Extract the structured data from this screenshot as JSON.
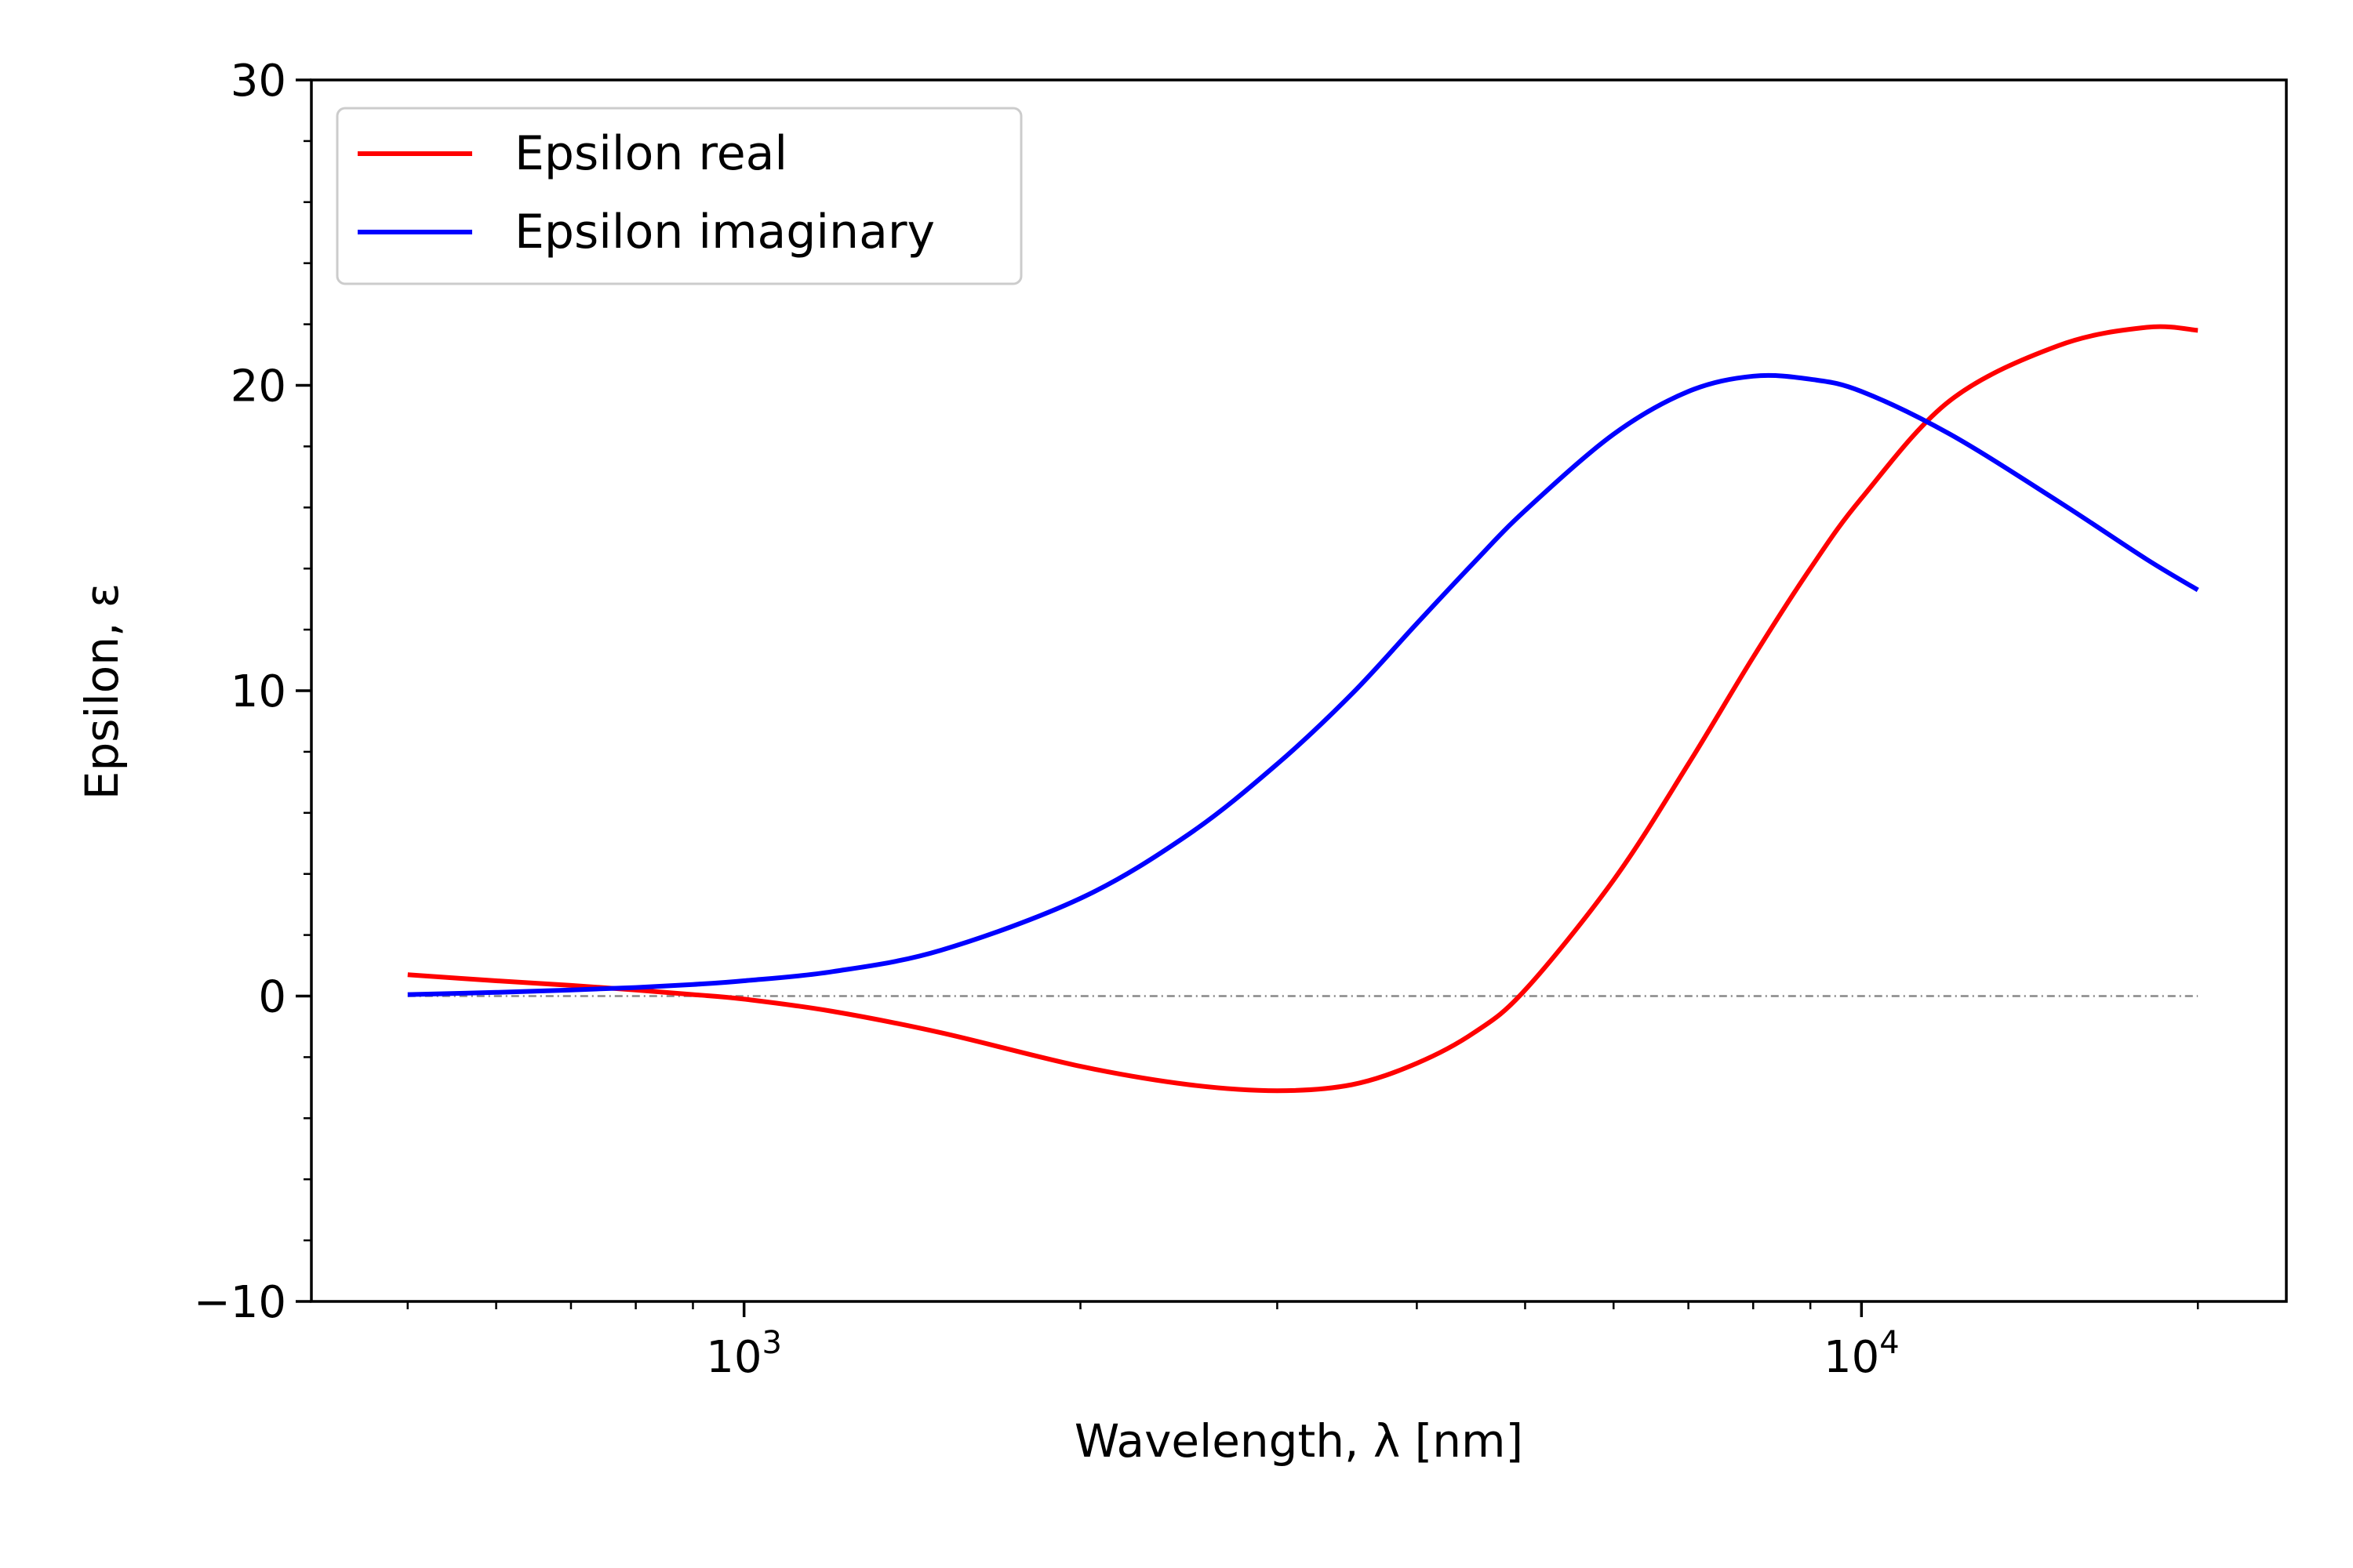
{
  "chart_data": {
    "type": "line",
    "xlabel": "Wavelength, λ [nm]",
    "ylabel": "Epsilon, ε",
    "x_scale": "log",
    "xlim": [
      410,
      24000
    ],
    "ylim": [
      -10,
      30
    ],
    "x_ticks": [
      {
        "value": 1000,
        "base": "10",
        "exp": "3"
      },
      {
        "value": 10000,
        "base": "10",
        "exp": "4"
      }
    ],
    "y_ticks": [
      -10,
      0,
      10,
      20,
      30
    ],
    "grid": false,
    "legend_position": "top-left",
    "zero_line": {
      "y": 0,
      "style": "dash-dot",
      "color": "#888888"
    },
    "series": [
      {
        "name": "Epsilon real",
        "color": "#ff0000",
        "x": [
          500,
          600,
          700,
          800,
          900,
          1000,
          1200,
          1500,
          2000,
          2500,
          3000,
          3500,
          4000,
          4500,
          5000,
          6000,
          7000,
          8000,
          9000,
          10000,
          12000,
          15000,
          18000,
          20000
        ],
        "y": [
          0.7,
          0.5,
          0.35,
          0.2,
          0.05,
          -0.1,
          -0.5,
          -1.2,
          -2.3,
          -2.9,
          -3.1,
          -2.9,
          -2.2,
          -1.2,
          0.2,
          3.8,
          7.6,
          11.1,
          14.0,
          16.3,
          19.5,
          21.3,
          21.9,
          21.8
        ]
      },
      {
        "name": "Epsilon imaginary",
        "color": "#0000ff",
        "x": [
          500,
          600,
          700,
          800,
          900,
          1000,
          1200,
          1500,
          2000,
          2500,
          3000,
          3500,
          4000,
          4500,
          5000,
          6000,
          7000,
          8000,
          9000,
          10000,
          12000,
          15000,
          18000,
          20000
        ],
        "y": [
          0.05,
          0.12,
          0.2,
          0.28,
          0.38,
          0.5,
          0.8,
          1.5,
          3.2,
          5.3,
          7.6,
          9.9,
          12.2,
          14.2,
          15.9,
          18.4,
          19.8,
          20.3,
          20.2,
          19.8,
          18.4,
          16.2,
          14.3,
          13.3
        ]
      }
    ]
  }
}
